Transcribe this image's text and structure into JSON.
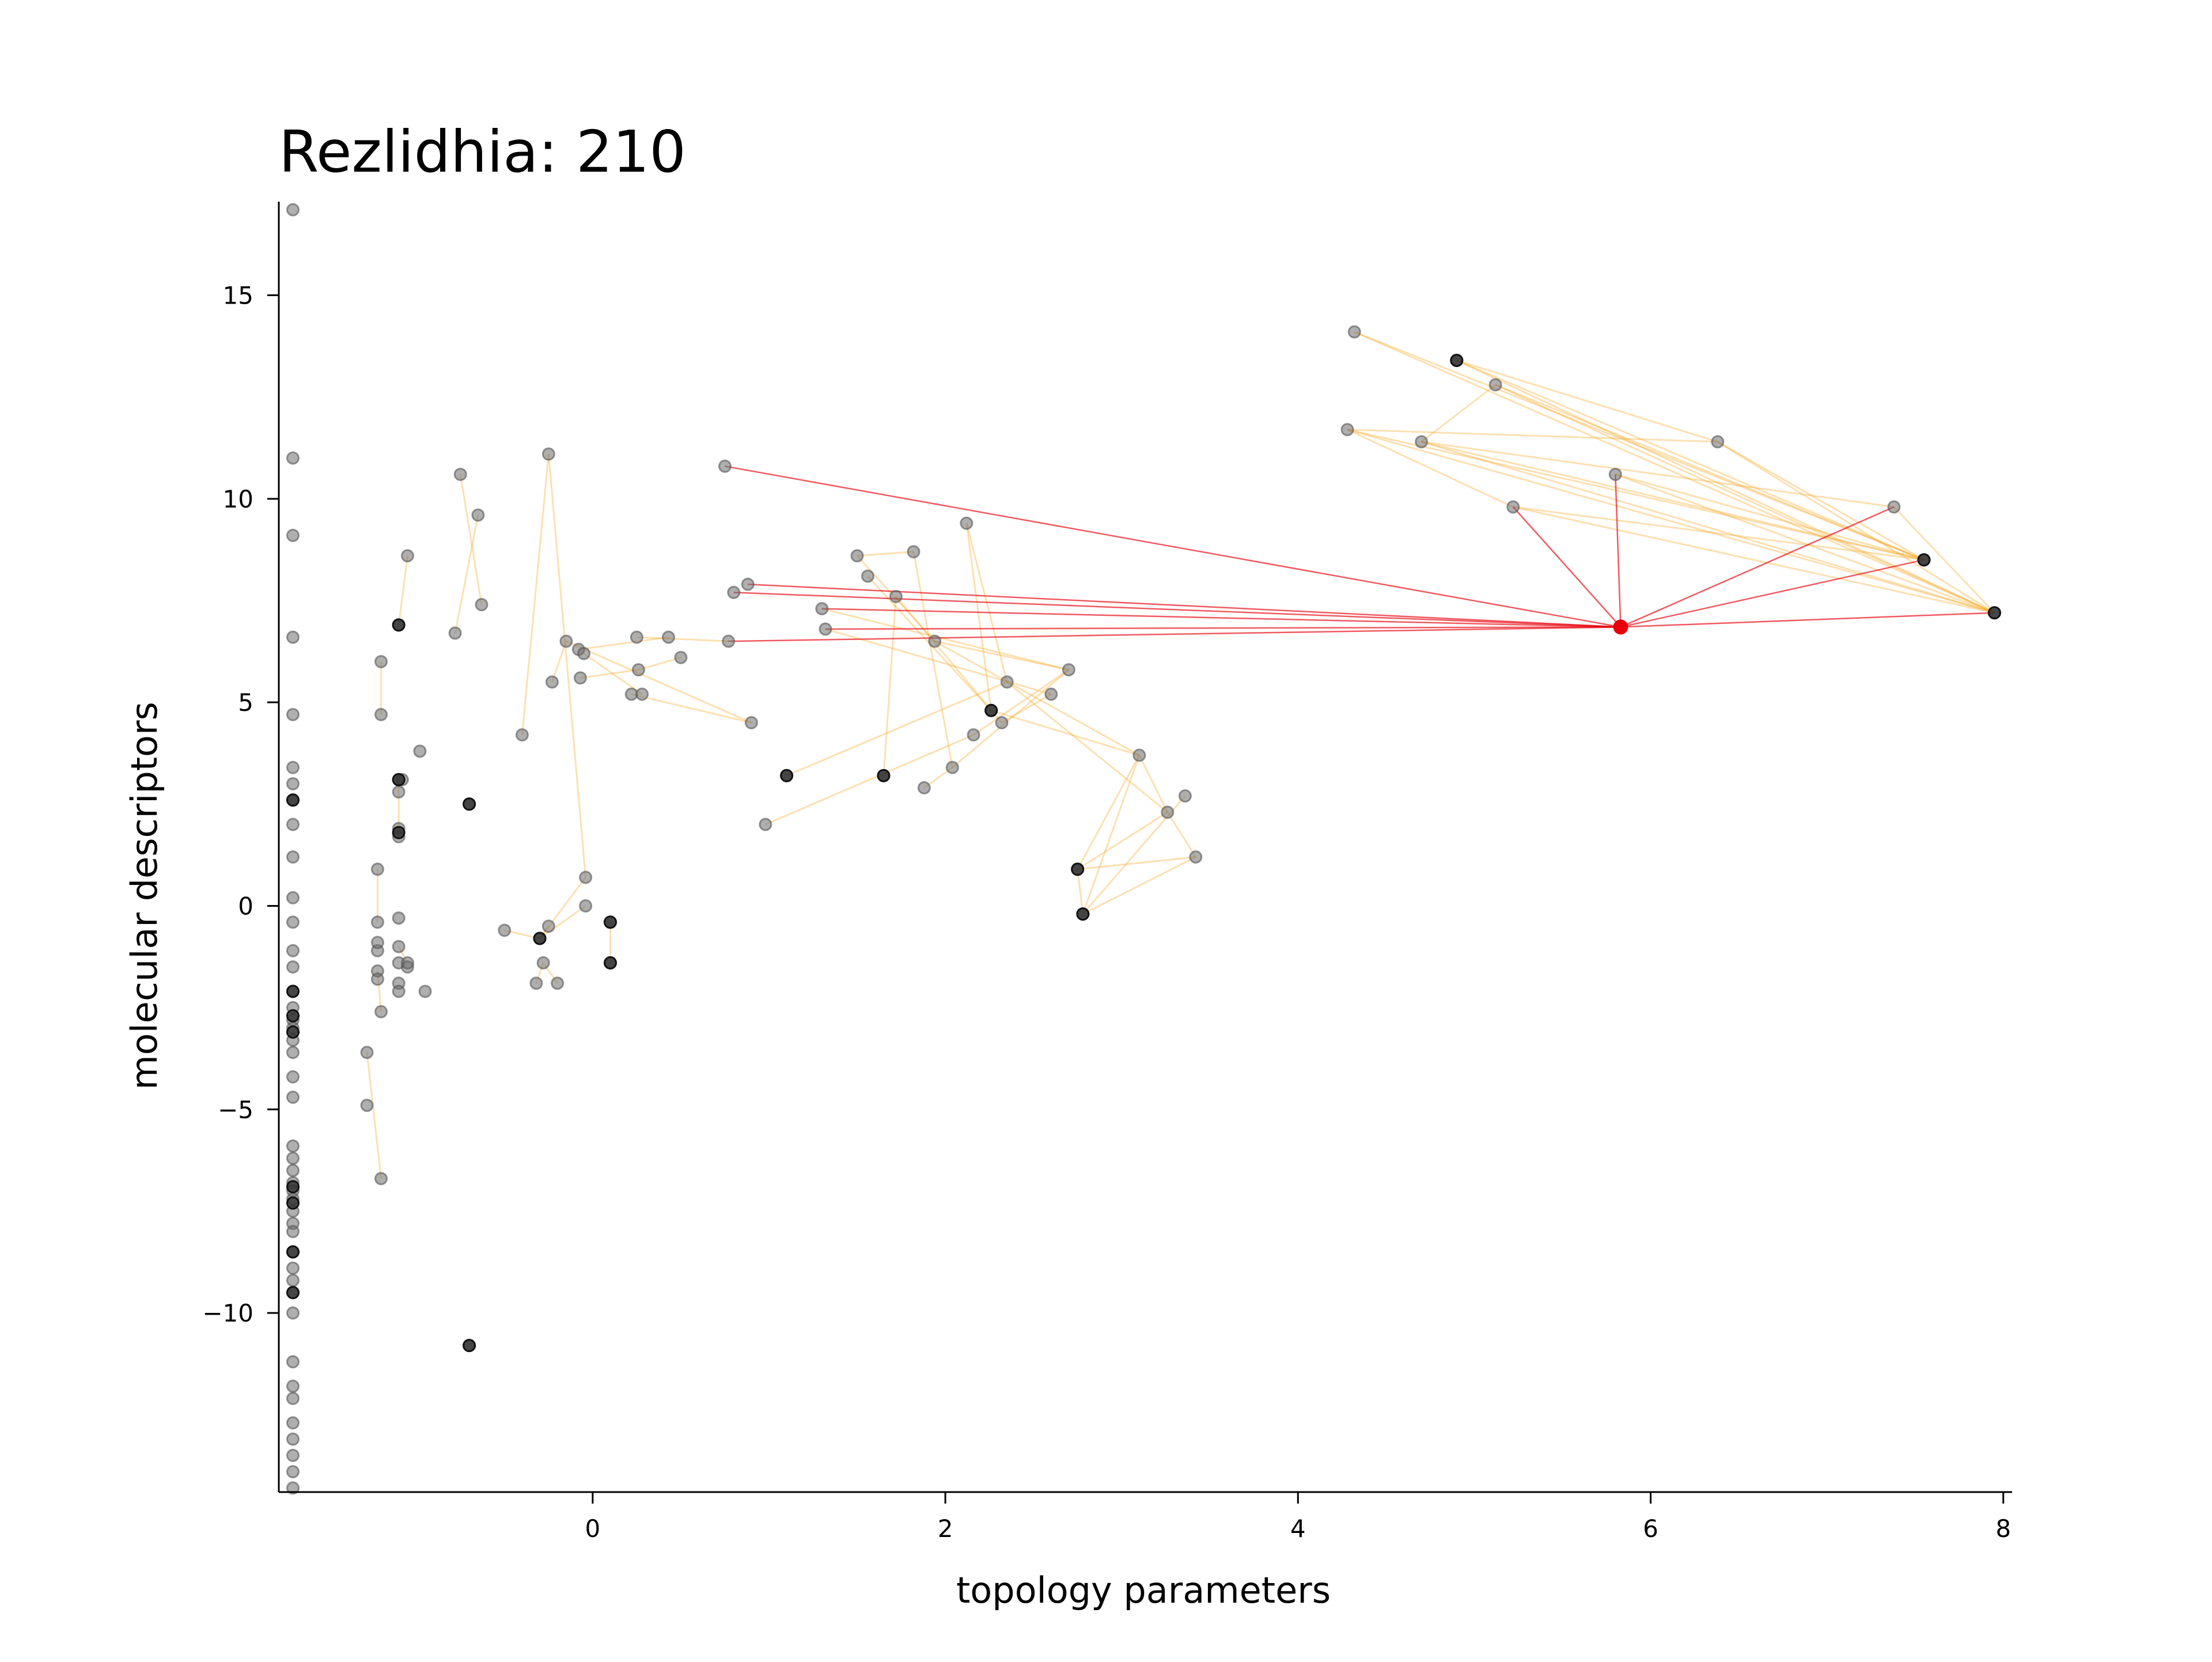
{
  "chart_data": {
    "type": "scatter",
    "title": "Rezlidhia: 210",
    "xlabel": "topology parameters",
    "ylabel": "molecular descriptors",
    "xlim": [
      -1.78,
      8.05
    ],
    "ylim": [
      -14.4,
      17.3
    ],
    "xticks": [
      0,
      2,
      4,
      6,
      8
    ],
    "yticks": [
      -10,
      -5,
      0,
      5,
      10,
      15
    ],
    "xtick_labels": [
      "0",
      "2",
      "4",
      "6",
      "8"
    ],
    "ytick_labels": [
      "−10",
      "−5",
      "0",
      "5",
      "10",
      "15"
    ],
    "grid": false,
    "legend": "none",
    "colors": {
      "point": "#000000",
      "edge": "#f5a623",
      "highlight": "#e8000b",
      "axis": "#000000"
    },
    "highlight_point": [
      5.83,
      6.85
    ],
    "points": [
      [
        -1.7,
        17.1
      ],
      [
        -1.7,
        11
      ],
      [
        -1.7,
        9.1
      ],
      [
        -1.7,
        6.6
      ],
      [
        -1.7,
        4.7
      ],
      [
        -1.7,
        3.4
      ],
      [
        -1.7,
        3
      ],
      [
        -1.7,
        2.6
      ],
      [
        -1.7,
        2
      ],
      [
        -1.7,
        1.2
      ],
      [
        -1.7,
        0.2
      ],
      [
        -1.7,
        -0.4
      ],
      [
        -1.7,
        -1.1
      ],
      [
        -1.7,
        -1.5
      ],
      [
        -1.7,
        -2.1
      ],
      [
        -1.7,
        -2.5
      ],
      [
        -1.7,
        -2.8
      ],
      [
        -1.7,
        -3
      ],
      [
        -1.7,
        -3.3
      ],
      [
        -1.7,
        -3.6
      ],
      [
        -1.7,
        -4.2
      ],
      [
        -1.7,
        -4.7
      ],
      [
        -1.7,
        -5.9
      ],
      [
        -1.7,
        -6.2
      ],
      [
        -1.7,
        -6.5
      ],
      [
        -1.7,
        -6.8
      ],
      [
        -1.7,
        -7
      ],
      [
        -1.7,
        -7.2
      ],
      [
        -1.7,
        -7.5
      ],
      [
        -1.7,
        -7.8
      ],
      [
        -1.7,
        -8
      ],
      [
        -1.7,
        -8.5
      ],
      [
        -1.7,
        -8.9
      ],
      [
        -1.7,
        -9.2
      ],
      [
        -1.7,
        -9.5
      ],
      [
        -1.7,
        -10
      ],
      [
        -1.7,
        -11.2
      ],
      [
        -1.7,
        -11.8
      ],
      [
        -1.7,
        -12.1
      ],
      [
        -1.7,
        -12.7
      ],
      [
        -1.7,
        -13.1
      ],
      [
        -1.7,
        -13.5
      ],
      [
        -1.7,
        -13.9
      ],
      [
        -1.7,
        -14.3
      ],
      [
        -1.28,
        -3.6
      ],
      [
        -1.28,
        -4.9
      ],
      [
        -1.22,
        0.9
      ],
      [
        -1.22,
        -1.1
      ],
      [
        -1.22,
        -1.6
      ],
      [
        -1.22,
        -1.8
      ],
      [
        -1.2,
        -2.6
      ],
      [
        -1.2,
        -6.7
      ],
      [
        -1.2,
        6
      ],
      [
        -1.2,
        4.7
      ],
      [
        -1.22,
        -0.4
      ],
      [
        -1.22,
        -0.9
      ],
      [
        -1.1,
        3.1
      ],
      [
        -1.1,
        2.8
      ],
      [
        -1.1,
        1.9
      ],
      [
        -1.1,
        1.7
      ],
      [
        -1.1,
        -0.3
      ],
      [
        -1.1,
        -1
      ],
      [
        -1.1,
        -1.4
      ],
      [
        -1.1,
        -1.9
      ],
      [
        -1.1,
        -2.1
      ],
      [
        -1.1,
        6.9
      ],
      [
        -1.05,
        -1.5
      ],
      [
        -1.05,
        -1.4
      ],
      [
        -1.08,
        3.1
      ],
      [
        -1.05,
        8.6
      ],
      [
        -0.98,
        3.8
      ],
      [
        -0.95,
        -2.1
      ],
      [
        -0.78,
        6.7
      ],
      [
        -0.75,
        10.6
      ],
      [
        -0.7,
        2.5
      ],
      [
        -0.7,
        -10.8
      ],
      [
        -0.65,
        9.6
      ],
      [
        -0.63,
        7.4
      ],
      [
        -0.5,
        -0.6
      ],
      [
        -0.4,
        4.2
      ],
      [
        -0.32,
        -1.9
      ],
      [
        -0.3,
        -0.8
      ],
      [
        -0.28,
        -1.4
      ],
      [
        -0.25,
        11.1
      ],
      [
        -0.25,
        -0.5
      ],
      [
        -0.23,
        5.5
      ],
      [
        -0.2,
        -1.9
      ],
      [
        -0.15,
        6.5
      ],
      [
        -0.08,
        6.3
      ],
      [
        -0.07,
        5.6
      ],
      [
        -0.05,
        6.2
      ],
      [
        -0.04,
        0.7
      ],
      [
        -0.04,
        0
      ],
      [
        0.1,
        -0.4
      ],
      [
        0.1,
        -1.4
      ],
      [
        0.22,
        5.2
      ],
      [
        0.25,
        6.6
      ],
      [
        0.26,
        5.8
      ],
      [
        0.28,
        5.2
      ],
      [
        0.43,
        6.6
      ],
      [
        0.5,
        6.1
      ],
      [
        0.75,
        10.8
      ],
      [
        0.77,
        6.5
      ],
      [
        0.8,
        7.7
      ],
      [
        0.88,
        7.9
      ],
      [
        0.9,
        4.5
      ],
      [
        0.98,
        2
      ],
      [
        1.1,
        3.2
      ],
      [
        1.3,
        7.3
      ],
      [
        1.32,
        6.8
      ],
      [
        1.5,
        8.6
      ],
      [
        1.56,
        8.1
      ],
      [
        1.65,
        3.2
      ],
      [
        1.72,
        7.6
      ],
      [
        1.82,
        8.7
      ],
      [
        1.88,
        2.9
      ],
      [
        1.94,
        6.5
      ],
      [
        2.04,
        3.4
      ],
      [
        2.12,
        9.4
      ],
      [
        2.16,
        4.2
      ],
      [
        2.26,
        4.8
      ],
      [
        2.32,
        4.5
      ],
      [
        2.35,
        5.5
      ],
      [
        2.6,
        5.2
      ],
      [
        2.7,
        5.8
      ],
      [
        2.75,
        0.9
      ],
      [
        2.78,
        -0.2
      ],
      [
        3.1,
        3.7
      ],
      [
        3.26,
        2.3
      ],
      [
        3.36,
        2.7
      ],
      [
        3.42,
        1.2
      ],
      [
        4.28,
        11.7
      ],
      [
        4.32,
        14.1
      ],
      [
        4.7,
        11.4
      ],
      [
        4.9,
        13.4
      ],
      [
        5.12,
        12.8
      ],
      [
        5.22,
        9.8
      ],
      [
        5.8,
        10.6
      ],
      [
        6.38,
        11.4
      ],
      [
        7.38,
        9.8
      ],
      [
        7.55,
        8.5
      ],
      [
        7.95,
        7.2
      ]
    ],
    "dark_points": [
      [
        -1.1,
        6.9
      ],
      [
        -1.1,
        3.1
      ],
      [
        -1.1,
        1.8
      ],
      [
        -0.7,
        2.5
      ],
      [
        -0.7,
        -10.8
      ],
      [
        -0.3,
        -0.8
      ],
      [
        0.1,
        -0.4
      ],
      [
        0.1,
        -1.4
      ],
      [
        1.1,
        3.2
      ],
      [
        1.65,
        3.2
      ],
      [
        2.26,
        4.8
      ],
      [
        2.75,
        0.9
      ],
      [
        2.78,
        -0.2
      ],
      [
        4.9,
        13.4
      ],
      [
        7.55,
        8.5
      ],
      [
        7.95,
        7.2
      ],
      [
        -1.7,
        2.6
      ],
      [
        -1.7,
        -2.1
      ],
      [
        -1.7,
        -2.7
      ],
      [
        -1.7,
        -3.1
      ],
      [
        -1.7,
        -6.9
      ],
      [
        -1.7,
        -7.3
      ],
      [
        -1.7,
        -8.5
      ],
      [
        -1.7,
        -9.5
      ]
    ],
    "red_edges": [
      [
        0.75,
        10.8
      ],
      [
        0.88,
        7.9
      ],
      [
        0.8,
        7.7
      ],
      [
        1.3,
        7.3
      ],
      [
        1.32,
        6.8
      ],
      [
        0.77,
        6.5
      ],
      [
        5.22,
        9.8
      ],
      [
        5.8,
        10.6
      ],
      [
        7.38,
        9.8
      ],
      [
        7.55,
        8.5
      ],
      [
        7.95,
        7.2
      ]
    ],
    "orange_edges": [
      [
        [
          4.9,
          13.4
        ],
        [
          7.55,
          8.5
        ]
      ],
      [
        [
          4.9,
          13.4
        ],
        [
          7.95,
          7.2
        ]
      ],
      [
        [
          4.32,
          14.1
        ],
        [
          7.55,
          8.5
        ]
      ],
      [
        [
          4.32,
          14.1
        ],
        [
          7.95,
          7.2
        ]
      ],
      [
        [
          5.12,
          12.8
        ],
        [
          7.55,
          8.5
        ]
      ],
      [
        [
          5.12,
          12.8
        ],
        [
          7.95,
          7.2
        ]
      ],
      [
        [
          6.38,
          11.4
        ],
        [
          7.95,
          7.2
        ]
      ],
      [
        [
          6.38,
          11.4
        ],
        [
          7.55,
          8.5
        ]
      ],
      [
        [
          4.28,
          11.7
        ],
        [
          7.55,
          8.5
        ]
      ],
      [
        [
          4.28,
          11.7
        ],
        [
          7.95,
          7.2
        ]
      ],
      [
        [
          4.7,
          11.4
        ],
        [
          7.55,
          8.5
        ]
      ],
      [
        [
          4.7,
          11.4
        ],
        [
          7.95,
          7.2
        ]
      ],
      [
        [
          5.22,
          9.8
        ],
        [
          7.55,
          8.5
        ]
      ],
      [
        [
          5.22,
          9.8
        ],
        [
          7.95,
          7.2
        ]
      ],
      [
        [
          5.8,
          10.6
        ],
        [
          7.95,
          7.2
        ]
      ],
      [
        [
          7.38,
          9.8
        ],
        [
          7.95,
          7.2
        ]
      ],
      [
        [
          4.9,
          13.4
        ],
        [
          6.38,
          11.4
        ]
      ],
      [
        [
          4.28,
          11.7
        ],
        [
          6.38,
          11.4
        ]
      ],
      [
        [
          4.7,
          11.4
        ],
        [
          7.38,
          9.8
        ]
      ],
      [
        [
          5.8,
          10.6
        ],
        [
          7.55,
          8.5
        ]
      ],
      [
        [
          4.28,
          11.7
        ],
        [
          5.22,
          9.8
        ]
      ],
      [
        [
          4.7,
          11.4
        ],
        [
          5.12,
          12.8
        ]
      ],
      [
        [
          2.75,
          0.9
        ],
        [
          3.1,
          3.7
        ]
      ],
      [
        [
          2.75,
          0.9
        ],
        [
          3.26,
          2.3
        ]
      ],
      [
        [
          2.78,
          -0.2
        ],
        [
          3.1,
          3.7
        ]
      ],
      [
        [
          2.78,
          -0.2
        ],
        [
          3.36,
          2.7
        ]
      ],
      [
        [
          2.78,
          -0.2
        ],
        [
          3.42,
          1.2
        ]
      ],
      [
        [
          2.75,
          0.9
        ],
        [
          2.78,
          -0.2
        ]
      ],
      [
        [
          3.26,
          2.3
        ],
        [
          3.42,
          1.2
        ]
      ],
      [
        [
          2.75,
          0.9
        ],
        [
          3.42,
          1.2
        ]
      ],
      [
        [
          3.1,
          3.7
        ],
        [
          3.26,
          2.3
        ]
      ],
      [
        [
          1.65,
          3.2
        ],
        [
          1.72,
          7.6
        ]
      ],
      [
        [
          1.5,
          8.6
        ],
        [
          1.94,
          6.5
        ]
      ],
      [
        [
          1.56,
          8.1
        ],
        [
          2.26,
          4.8
        ]
      ],
      [
        [
          1.72,
          7.6
        ],
        [
          2.32,
          4.5
        ]
      ],
      [
        [
          1.82,
          8.7
        ],
        [
          2.04,
          3.4
        ]
      ],
      [
        [
          2.12,
          9.4
        ],
        [
          2.26,
          4.8
        ]
      ],
      [
        [
          2.12,
          9.4
        ],
        [
          2.35,
          5.5
        ]
      ],
      [
        [
          1.94,
          6.5
        ],
        [
          2.7,
          5.8
        ]
      ],
      [
        [
          2.16,
          4.2
        ],
        [
          2.7,
          5.8
        ]
      ],
      [
        [
          2.32,
          4.5
        ],
        [
          2.6,
          5.2
        ]
      ],
      [
        [
          2.26,
          4.8
        ],
        [
          3.1,
          3.7
        ]
      ],
      [
        [
          2.35,
          5.5
        ],
        [
          3.26,
          2.3
        ]
      ],
      [
        [
          1.88,
          2.9
        ],
        [
          2.04,
          3.4
        ]
      ],
      [
        [
          0.98,
          2
        ],
        [
          2.16,
          4.2
        ]
      ],
      [
        [
          1.1,
          3.2
        ],
        [
          2.35,
          5.5
        ]
      ],
      [
        [
          1.3,
          7.3
        ],
        [
          2.7,
          5.8
        ]
      ],
      [
        [
          1.32,
          6.8
        ],
        [
          2.6,
          5.2
        ]
      ],
      [
        [
          1.5,
          8.6
        ],
        [
          1.82,
          8.7
        ]
      ],
      [
        [
          2.04,
          3.4
        ],
        [
          2.7,
          5.8
        ]
      ],
      [
        [
          1.94,
          6.5
        ],
        [
          3.1,
          3.7
        ]
      ],
      [
        [
          -0.15,
          6.5
        ],
        [
          0.9,
          4.5
        ]
      ],
      [
        [
          -0.05,
          6.2
        ],
        [
          0.28,
          5.2
        ]
      ],
      [
        [
          0.25,
          6.6
        ],
        [
          0.77,
          6.5
        ]
      ],
      [
        [
          0.22,
          5.2
        ],
        [
          0.9,
          4.5
        ]
      ],
      [
        [
          0.26,
          5.8
        ],
        [
          0.5,
          6.1
        ]
      ],
      [
        [
          -0.08,
          6.3
        ],
        [
          0.43,
          6.6
        ]
      ],
      [
        [
          -0.07,
          5.6
        ],
        [
          0.26,
          5.8
        ]
      ],
      [
        [
          -0.23,
          5.5
        ],
        [
          -0.15,
          6.5
        ]
      ],
      [
        [
          -0.25,
          11.1
        ],
        [
          -0.04,
          0.7
        ]
      ],
      [
        [
          -0.4,
          4.2
        ],
        [
          -0.25,
          11.1
        ]
      ],
      [
        [
          -0.3,
          -0.8
        ],
        [
          -0.25,
          -0.5
        ]
      ],
      [
        [
          -0.28,
          -1.4
        ],
        [
          -0.2,
          -1.9
        ]
      ],
      [
        [
          -0.3,
          -0.8
        ],
        [
          -0.04,
          0.7
        ]
      ],
      [
        [
          -0.5,
          -0.6
        ],
        [
          -0.3,
          -0.8
        ]
      ],
      [
        [
          0.1,
          -0.4
        ],
        [
          0.1,
          -1.4
        ]
      ],
      [
        [
          -0.32,
          -1.9
        ],
        [
          -0.28,
          -1.4
        ]
      ],
      [
        [
          -0.04,
          0
        ],
        [
          -0.3,
          -0.8
        ]
      ],
      [
        [
          -0.78,
          6.7
        ],
        [
          -0.65,
          9.6
        ]
      ],
      [
        [
          -0.75,
          10.6
        ],
        [
          -0.63,
          7.4
        ]
      ],
      [
        [
          -1.05,
          8.6
        ],
        [
          -1.1,
          6.9
        ]
      ],
      [
        [
          -1.2,
          6
        ],
        [
          -1.2,
          4.7
        ]
      ],
      [
        [
          -1.22,
          0.9
        ],
        [
          -1.22,
          -0.4
        ]
      ],
      [
        [
          -1.2,
          -2.6
        ],
        [
          -1.22,
          -1.6
        ]
      ],
      [
        [
          -1.28,
          -3.6
        ],
        [
          -1.2,
          -6.7
        ]
      ],
      [
        [
          -1.1,
          -1
        ],
        [
          -1.05,
          -1.4
        ]
      ],
      [
        [
          -1.1,
          3.1
        ],
        [
          -1.1,
          1.7
        ]
      ]
    ]
  }
}
